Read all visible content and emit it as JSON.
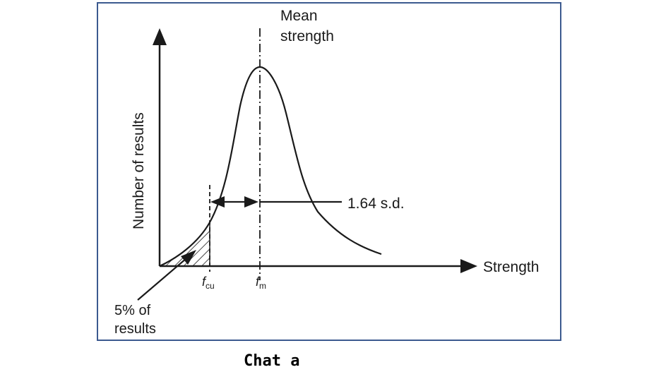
{
  "diagram": {
    "y_axis_label": "Number of results",
    "x_axis_label": "Strength",
    "mean_label_line1": "Mean",
    "mean_label_line2": "strength",
    "sd_label": "1.64 s.d.",
    "fcu_label_main": "f",
    "fcu_label_sub": "cu",
    "fm_label_main": "f",
    "fm_label_sub": "m",
    "tail_label_line1": "5% of",
    "tail_label_line2": "results"
  },
  "caption": "Chat a",
  "colors": {
    "frame": "#3c5a8f",
    "ink": "#1a1a1a"
  }
}
